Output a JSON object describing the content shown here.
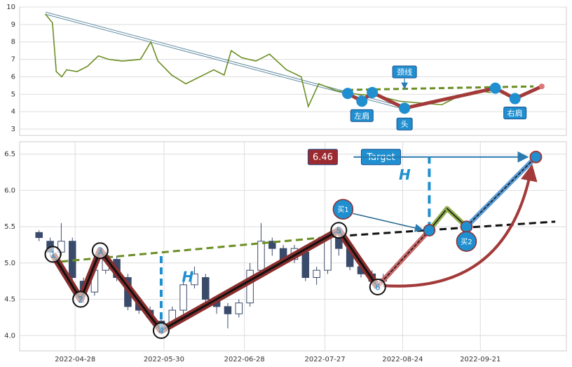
{
  "chart_data": [
    {
      "type": "line",
      "xlim": [
        0,
        100
      ],
      "ylim": [
        2.64,
        10
      ],
      "yticks": [
        3,
        4,
        5,
        6,
        7,
        8,
        9,
        10
      ],
      "grid": true,
      "color": "#6b8e23",
      "x": [
        4.7,
        6.0,
        6.7,
        7.7,
        8.6,
        10.5,
        12.4,
        14.4,
        16.3,
        18.8,
        22.1,
        24.0,
        25.3,
        27.8,
        30.4,
        33.6,
        35.5,
        37.4,
        38.7,
        40.6,
        43.2,
        45.7,
        48.8,
        51.5,
        52.8,
        54.7,
        58.0,
        61.8,
        65.6,
        69.5,
        73.3,
        77.2,
        80.4,
        83.6,
        86.2
      ],
      "values": [
        9.6,
        9.1,
        6.3,
        6.0,
        6.4,
        6.3,
        6.6,
        7.2,
        7.0,
        6.9,
        7.0,
        8.0,
        6.9,
        6.1,
        5.6,
        6.1,
        6.4,
        6.1,
        7.5,
        7.1,
        6.9,
        7.3,
        6.4,
        6.0,
        4.3,
        5.6,
        5.2,
        5.0,
        4.9,
        4.6,
        4.5,
        4.4,
        4.9,
        5.2,
        5.1
      ],
      "trend_line": {
        "x": [
          4.7,
          70.4
        ],
        "values": [
          9.65,
          4.2
        ]
      },
      "neckline": {
        "x": [
          60,
          94
        ],
        "values": [
          5.25,
          5.45
        ]
      },
      "pattern": {
        "x": [
          60,
          62.6,
          64.5,
          70.4,
          87,
          90.6,
          95.5
        ],
        "values": [
          5.05,
          4.6,
          5.1,
          4.2,
          5.35,
          4.75,
          5.45
        ]
      },
      "annotations": {
        "left_shoulder": "左肩",
        "head": "头",
        "right_shoulder": "右肩",
        "neckline": "颈线"
      }
    },
    {
      "type": "candlestick",
      "xlim": [
        7,
        204
      ],
      "ylim": [
        3.79,
        6.67
      ],
      "grid": true,
      "yticks": [
        {
          "value": 4,
          "label": "4.0"
        },
        {
          "value": 4.5,
          "label": "4.5"
        },
        {
          "value": 5,
          "label": "5.0"
        },
        {
          "value": 5.5,
          "label": "5.5"
        },
        {
          "value": 6,
          "label": "6.0"
        },
        {
          "value": 6.5,
          "label": "6.5"
        }
      ],
      "xticks": [
        {
          "value": 27,
          "label": "2022-04-28"
        },
        {
          "value": 59,
          "label": "2022-05-30"
        },
        {
          "value": 88,
          "label": "2022-06-28"
        },
        {
          "value": 117,
          "label": "2022-07-27"
        },
        {
          "value": 145,
          "label": "2022-08-24"
        },
        {
          "value": 173,
          "label": "2022-09-21"
        }
      ],
      "x": [
        14,
        18,
        22,
        26,
        30,
        34,
        38,
        42,
        46,
        50,
        54,
        58,
        62,
        66,
        70,
        74,
        78,
        82,
        86,
        90,
        94,
        98,
        102,
        106,
        110,
        114,
        118,
        122,
        126,
        130,
        134,
        138
      ],
      "open": [
        5.42,
        5.3,
        5.15,
        5.3,
        4.75,
        4.6,
        4.9,
        5.05,
        4.8,
        4.45,
        4.35,
        4.2,
        4.15,
        4.35,
        4.7,
        4.8,
        4.5,
        4.4,
        4.3,
        4.45,
        4.9,
        5.3,
        5.2,
        5.05,
        5.15,
        4.8,
        4.9,
        5.35,
        5.2,
        4.95,
        4.85,
        4.75
      ],
      "close": [
        5.35,
        5.15,
        5.3,
        4.8,
        4.6,
        4.9,
        5.1,
        4.8,
        4.4,
        4.35,
        4.25,
        4.15,
        4.35,
        4.7,
        4.85,
        4.5,
        4.4,
        4.3,
        4.45,
        4.9,
        5.3,
        5.2,
        5.05,
        5.2,
        4.8,
        4.9,
        5.35,
        5.2,
        4.95,
        4.85,
        4.75,
        4.78
      ],
      "high": [
        5.45,
        5.35,
        5.55,
        5.35,
        4.8,
        4.95,
        5.15,
        5.1,
        4.85,
        4.5,
        4.4,
        4.25,
        4.4,
        4.75,
        4.95,
        4.85,
        4.55,
        4.45,
        4.5,
        5.0,
        5.55,
        5.35,
        5.25,
        5.25,
        5.2,
        4.95,
        5.4,
        5.45,
        5.25,
        5.0,
        4.9,
        4.85
      ],
      "low": [
        5.3,
        5.1,
        5.1,
        4.75,
        4.45,
        4.55,
        4.85,
        4.75,
        4.35,
        4.3,
        4.2,
        4.1,
        4.1,
        4.3,
        4.65,
        4.45,
        4.3,
        4.1,
        4.25,
        4.4,
        4.85,
        5.1,
        5.0,
        5.0,
        4.75,
        4.7,
        4.85,
        5.1,
        4.9,
        4.8,
        4.7,
        4.7
      ],
      "pattern": {
        "x": [
          19,
          29,
          36,
          58,
          122,
          136
        ],
        "values": [
          5.12,
          4.5,
          5.17,
          4.07,
          5.45,
          4.67
        ],
        "labels": [
          "1",
          "2",
          "3",
          "4",
          "5",
          "6"
        ]
      },
      "neckline": {
        "x": [
          22,
          122,
          200
        ],
        "values": [
          5.02,
          5.37,
          5.57
        ]
      },
      "projection": {
        "x": [
          136,
          154.6,
          161,
          168,
          193
        ],
        "values": [
          4.68,
          5.45,
          5.75,
          5.5,
          6.46
        ]
      },
      "buy_points": {
        "x": [
          154.6,
          168
        ],
        "values": [
          5.45,
          5.5
        ],
        "labels": [
          "买1",
          "买2"
        ]
      },
      "target": {
        "label": "Target",
        "x": [
          193
        ],
        "values": [
          6.46
        ],
        "value_labels": [
          "6.46"
        ]
      },
      "measure_label": "H"
    }
  ]
}
